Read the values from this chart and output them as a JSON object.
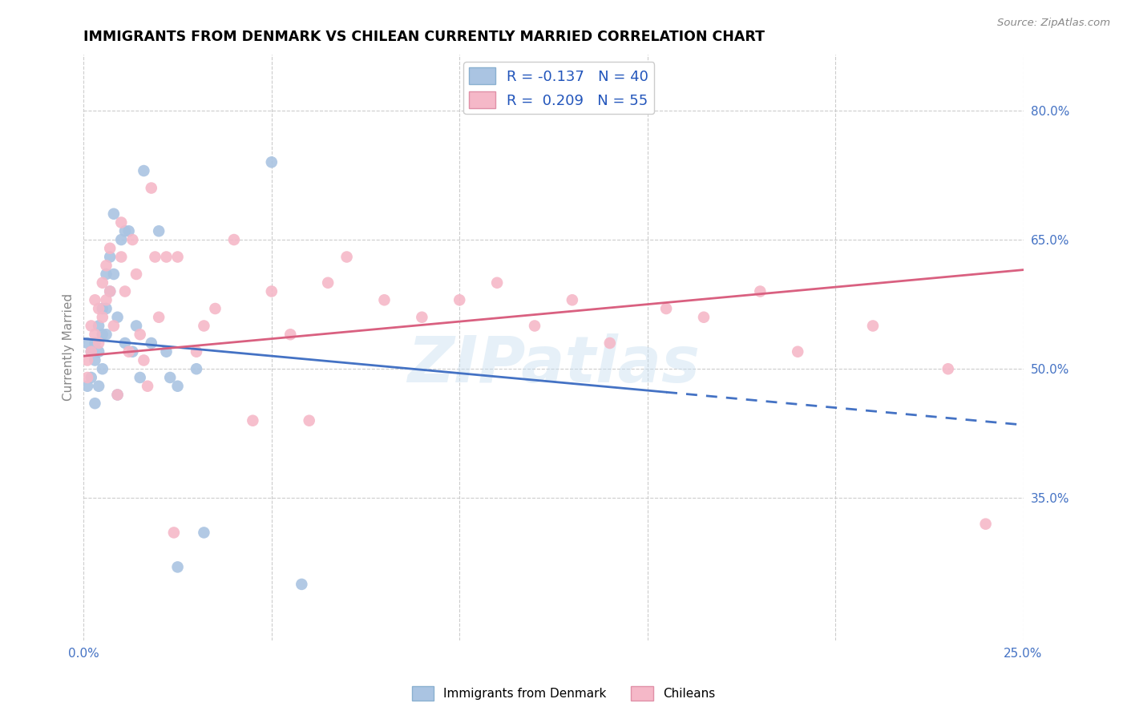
{
  "title": "IMMIGRANTS FROM DENMARK VS CHILEAN CURRENTLY MARRIED CORRELATION CHART",
  "source_text": "Source: ZipAtlas.com",
  "ylabel": "Currently Married",
  "xlim": [
    0.0,
    0.25
  ],
  "ylim": [
    0.185,
    0.865
  ],
  "right_yticks": [
    0.35,
    0.5,
    0.65,
    0.8
  ],
  "right_yticklabels": [
    "35.0%",
    "50.0%",
    "65.0%",
    "80.0%"
  ],
  "xticks": [
    0.0,
    0.05,
    0.1,
    0.15,
    0.2,
    0.25
  ],
  "xticklabels": [
    "0.0%",
    "",
    "",
    "",
    "",
    "25.0%"
  ],
  "legend_entries": [
    {
      "label": "R = -0.137   N = 40",
      "color": "#aac4e2"
    },
    {
      "label": "R =  0.209   N = 55",
      "color": "#f5b8c8"
    }
  ],
  "blue_color": "#aac4e2",
  "pink_color": "#f5b8c8",
  "blue_line_color": "#4472c4",
  "pink_line_color": "#d96080",
  "watermark": "ZIPatlas",
  "blue_line_x0": 0.0,
  "blue_line_y0": 0.535,
  "blue_line_x1": 0.25,
  "blue_line_y1": 0.435,
  "blue_line_solid_end": 0.155,
  "pink_line_x0": 0.0,
  "pink_line_y0": 0.515,
  "pink_line_x1": 0.25,
  "pink_line_y1": 0.615,
  "denmark_points_x": [
    0.001,
    0.001,
    0.002,
    0.002,
    0.003,
    0.003,
    0.003,
    0.004,
    0.004,
    0.004,
    0.005,
    0.005,
    0.005,
    0.006,
    0.006,
    0.006,
    0.007,
    0.007,
    0.008,
    0.008,
    0.009,
    0.009,
    0.01,
    0.011,
    0.011,
    0.012,
    0.013,
    0.014,
    0.015,
    0.016,
    0.018,
    0.02,
    0.022,
    0.023,
    0.025,
    0.03,
    0.032,
    0.05,
    0.058,
    0.025
  ],
  "denmark_points_y": [
    0.53,
    0.48,
    0.52,
    0.49,
    0.53,
    0.51,
    0.46,
    0.55,
    0.52,
    0.48,
    0.57,
    0.54,
    0.5,
    0.61,
    0.57,
    0.54,
    0.63,
    0.59,
    0.68,
    0.61,
    0.56,
    0.47,
    0.65,
    0.66,
    0.53,
    0.66,
    0.52,
    0.55,
    0.49,
    0.73,
    0.53,
    0.66,
    0.52,
    0.49,
    0.27,
    0.5,
    0.31,
    0.74,
    0.25,
    0.48
  ],
  "chilean_points_x": [
    0.001,
    0.001,
    0.002,
    0.002,
    0.003,
    0.003,
    0.004,
    0.004,
    0.005,
    0.005,
    0.006,
    0.006,
    0.007,
    0.007,
    0.008,
    0.009,
    0.01,
    0.01,
    0.011,
    0.012,
    0.013,
    0.014,
    0.015,
    0.016,
    0.017,
    0.018,
    0.019,
    0.02,
    0.022,
    0.024,
    0.025,
    0.03,
    0.032,
    0.035,
    0.04,
    0.045,
    0.05,
    0.055,
    0.06,
    0.065,
    0.07,
    0.08,
    0.09,
    0.1,
    0.11,
    0.12,
    0.13,
    0.14,
    0.155,
    0.165,
    0.18,
    0.19,
    0.21,
    0.23,
    0.24
  ],
  "chilean_points_y": [
    0.51,
    0.49,
    0.55,
    0.52,
    0.58,
    0.54,
    0.57,
    0.53,
    0.6,
    0.56,
    0.62,
    0.58,
    0.64,
    0.59,
    0.55,
    0.47,
    0.67,
    0.63,
    0.59,
    0.52,
    0.65,
    0.61,
    0.54,
    0.51,
    0.48,
    0.71,
    0.63,
    0.56,
    0.63,
    0.31,
    0.63,
    0.52,
    0.55,
    0.57,
    0.65,
    0.44,
    0.59,
    0.54,
    0.44,
    0.6,
    0.63,
    0.58,
    0.56,
    0.58,
    0.6,
    0.55,
    0.58,
    0.53,
    0.57,
    0.56,
    0.59,
    0.52,
    0.55,
    0.5,
    0.32
  ]
}
